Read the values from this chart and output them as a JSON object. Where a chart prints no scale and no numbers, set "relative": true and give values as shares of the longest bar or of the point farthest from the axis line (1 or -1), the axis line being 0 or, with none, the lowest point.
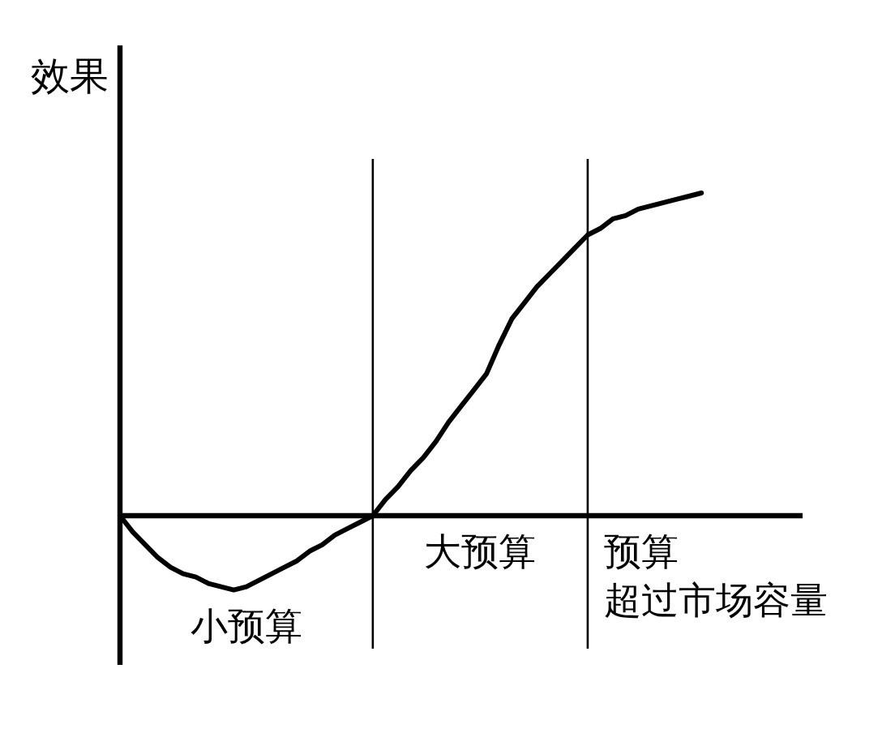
{
  "chart_data": {
    "type": "line",
    "relative": true,
    "ylabel": "效果",
    "categories": [
      null,
      null,
      null,
      null,
      null,
      null,
      null,
      null,
      null,
      null,
      null,
      null,
      null,
      null,
      null,
      null,
      null,
      null,
      null,
      null,
      null,
      null,
      null,
      null,
      null,
      null,
      null,
      null,
      null,
      null,
      null,
      null,
      null,
      null,
      null,
      null,
      null,
      null,
      null,
      null,
      null,
      null,
      null,
      null,
      null,
      null,
      null,
      null,
      null,
      null,
      null,
      null,
      null,
      null,
      null
    ],
    "color": "#000000",
    "values": [
      0,
      -0.05,
      -0.09,
      -0.13,
      -0.16,
      -0.18,
      -0.19,
      -0.21,
      -0.22,
      -0.23,
      -0.22,
      -0.2,
      -0.18,
      -0.16,
      -0.14,
      -0.11,
      -0.09,
      -0.06,
      -0.04,
      -0.02,
      0,
      0.05,
      0.09,
      0.14,
      0.18,
      0.23,
      0.29,
      0.34,
      0.39,
      0.44,
      0.53,
      0.61,
      0.66,
      0.71,
      0.75,
      0.79,
      0.83,
      0.87,
      0.89,
      0.92,
      0.93,
      0.95,
      0.96,
      0.97,
      0.98,
      0.99,
      1,
      null,
      null,
      null,
      null,
      null,
      null,
      null,
      null
    ],
    "annotations": [
      "小预算",
      "大预算",
      "预算超过市场容量"
    ]
  }
}
